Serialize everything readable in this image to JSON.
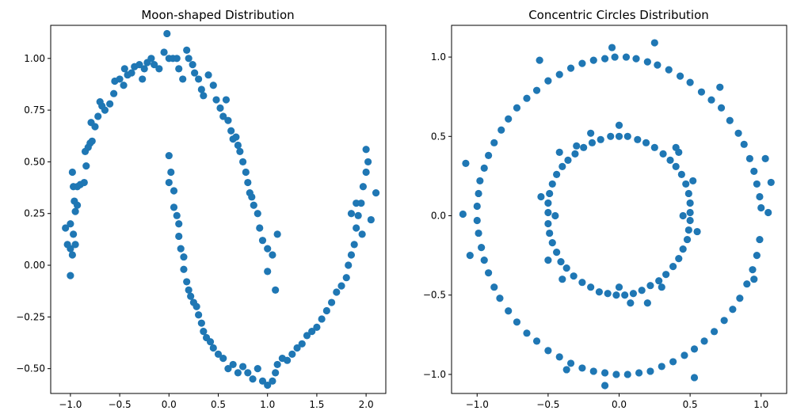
{
  "figure": {
    "background": "#ffffff",
    "marker_color": "#1f77b4"
  },
  "chart_data": [
    {
      "type": "scatter",
      "title": "Moon-shaped Distribution",
      "xlabel": "",
      "ylabel": "",
      "xlim": [
        -1.2,
        2.2
      ],
      "ylim": [
        -0.62,
        1.16
      ],
      "xticks": [
        -1.0,
        -0.5,
        0.0,
        0.5,
        1.0,
        1.5,
        2.0
      ],
      "xtick_labels": [
        "−1.0",
        "−0.5",
        "0.0",
        "0.5",
        "1.0",
        "1.5",
        "2.0"
      ],
      "yticks": [
        -0.5,
        -0.25,
        0.0,
        0.25,
        0.5,
        0.75,
        1.0
      ],
      "ytick_labels": [
        "−0.50",
        "−0.25",
        "0.00",
        "0.25",
        "0.50",
        "0.75",
        "1.00"
      ],
      "grid": false,
      "color": "#1f77b4",
      "points": [
        [
          -1.05,
          0.18
        ],
        [
          -1.03,
          0.1
        ],
        [
          -1.0,
          0.08
        ],
        [
          -0.98,
          0.05
        ],
        [
          -1.0,
          -0.05
        ],
        [
          -0.95,
          0.1
        ],
        [
          -0.97,
          0.15
        ],
        [
          -1.0,
          0.2
        ],
        [
          -0.95,
          0.26
        ],
        [
          -0.96,
          0.31
        ],
        [
          -0.93,
          0.29
        ],
        [
          -0.97,
          0.38
        ],
        [
          -0.93,
          0.38
        ],
        [
          -0.9,
          0.39
        ],
        [
          -0.98,
          0.45
        ],
        [
          -0.86,
          0.4
        ],
        [
          -0.84,
          0.48
        ],
        [
          -0.85,
          0.55
        ],
        [
          -0.82,
          0.57
        ],
        [
          -0.8,
          0.59
        ],
        [
          -0.78,
          0.6
        ],
        [
          -0.79,
          0.69
        ],
        [
          -0.75,
          0.67
        ],
        [
          -0.72,
          0.72
        ],
        [
          -0.7,
          0.79
        ],
        [
          -0.68,
          0.77
        ],
        [
          -0.65,
          0.75
        ],
        [
          -0.6,
          0.78
        ],
        [
          -0.56,
          0.83
        ],
        [
          -0.55,
          0.89
        ],
        [
          -0.5,
          0.9
        ],
        [
          -0.46,
          0.87
        ],
        [
          -0.45,
          0.95
        ],
        [
          -0.42,
          0.92
        ],
        [
          -0.38,
          0.93
        ],
        [
          -0.35,
          0.96
        ],
        [
          -0.3,
          0.97
        ],
        [
          -0.27,
          0.9
        ],
        [
          -0.25,
          0.95
        ],
        [
          -0.22,
          0.98
        ],
        [
          -0.18,
          1.0
        ],
        [
          -0.15,
          0.97
        ],
        [
          -0.1,
          0.95
        ],
        [
          -0.05,
          1.03
        ],
        [
          0.0,
          1.0
        ],
        [
          -0.02,
          1.12
        ],
        [
          0.04,
          1.0
        ],
        [
          0.08,
          1.0
        ],
        [
          0.1,
          0.95
        ],
        [
          0.14,
          0.9
        ],
        [
          0.18,
          1.04
        ],
        [
          0.2,
          1.0
        ],
        [
          0.24,
          0.97
        ],
        [
          0.26,
          0.93
        ],
        [
          0.3,
          0.9
        ],
        [
          0.33,
          0.85
        ],
        [
          0.35,
          0.82
        ],
        [
          0.4,
          0.92
        ],
        [
          0.45,
          0.87
        ],
        [
          0.48,
          0.8
        ],
        [
          0.52,
          0.76
        ],
        [
          0.55,
          0.72
        ],
        [
          0.58,
          0.8
        ],
        [
          0.6,
          0.7
        ],
        [
          0.63,
          0.65
        ],
        [
          0.65,
          0.61
        ],
        [
          0.68,
          0.62
        ],
        [
          0.7,
          0.58
        ],
        [
          0.72,
          0.55
        ],
        [
          0.75,
          0.5
        ],
        [
          0.78,
          0.45
        ],
        [
          0.8,
          0.4
        ],
        [
          0.82,
          0.35
        ],
        [
          0.84,
          0.33
        ],
        [
          0.86,
          0.29
        ],
        [
          0.9,
          0.25
        ],
        [
          0.92,
          0.18
        ],
        [
          0.95,
          0.12
        ],
        [
          1.0,
          0.08
        ],
        [
          1.05,
          0.05
        ],
        [
          1.1,
          0.15
        ],
        [
          1.08,
          -0.12
        ],
        [
          1.0,
          -0.03
        ],
        [
          0.0,
          0.53
        ],
        [
          0.02,
          0.45
        ],
        [
          0.0,
          0.4
        ],
        [
          0.05,
          0.36
        ],
        [
          0.05,
          0.28
        ],
        [
          0.08,
          0.24
        ],
        [
          0.1,
          0.2
        ],
        [
          0.1,
          0.14
        ],
        [
          0.12,
          0.08
        ],
        [
          0.15,
          0.04
        ],
        [
          0.15,
          -0.02
        ],
        [
          0.18,
          -0.08
        ],
        [
          0.2,
          -0.12
        ],
        [
          0.22,
          -0.15
        ],
        [
          0.25,
          -0.18
        ],
        [
          0.28,
          -0.2
        ],
        [
          0.3,
          -0.24
        ],
        [
          0.33,
          -0.28
        ],
        [
          0.35,
          -0.32
        ],
        [
          0.38,
          -0.35
        ],
        [
          0.42,
          -0.37
        ],
        [
          0.45,
          -0.4
        ],
        [
          0.5,
          -0.43
        ],
        [
          0.55,
          -0.45
        ],
        [
          0.6,
          -0.5
        ],
        [
          0.65,
          -0.48
        ],
        [
          0.7,
          -0.52
        ],
        [
          0.75,
          -0.49
        ],
        [
          0.8,
          -0.52
        ],
        [
          0.85,
          -0.55
        ],
        [
          0.9,
          -0.5
        ],
        [
          0.95,
          -0.56
        ],
        [
          1.0,
          -0.58
        ],
        [
          1.05,
          -0.56
        ],
        [
          1.08,
          -0.52
        ],
        [
          1.1,
          -0.48
        ],
        [
          1.15,
          -0.45
        ],
        [
          1.2,
          -0.46
        ],
        [
          1.25,
          -0.43
        ],
        [
          1.3,
          -0.4
        ],
        [
          1.35,
          -0.38
        ],
        [
          1.4,
          -0.34
        ],
        [
          1.45,
          -0.32
        ],
        [
          1.5,
          -0.3
        ],
        [
          1.55,
          -0.26
        ],
        [
          1.6,
          -0.22
        ],
        [
          1.65,
          -0.18
        ],
        [
          1.7,
          -0.13
        ],
        [
          1.75,
          -0.1
        ],
        [
          1.8,
          -0.06
        ],
        [
          1.82,
          0.0
        ],
        [
          1.85,
          0.05
        ],
        [
          1.88,
          0.1
        ],
        [
          1.9,
          0.18
        ],
        [
          1.92,
          0.24
        ],
        [
          1.95,
          0.3
        ],
        [
          1.97,
          0.38
        ],
        [
          2.0,
          0.45
        ],
        [
          2.02,
          0.5
        ],
        [
          2.0,
          0.56
        ],
        [
          2.05,
          0.22
        ],
        [
          2.1,
          0.35
        ],
        [
          1.96,
          0.15
        ],
        [
          1.9,
          0.3
        ],
        [
          1.85,
          0.25
        ]
      ]
    },
    {
      "type": "scatter",
      "title": "Concentric Circles Distribution",
      "xlabel": "",
      "ylabel": "",
      "xlim": [
        -1.18,
        1.18
      ],
      "ylim": [
        -1.12,
        1.2
      ],
      "xticks": [
        -1.0,
        -0.5,
        0.0,
        0.5,
        1.0
      ],
      "xtick_labels": [
        "−1.0",
        "−0.5",
        "0.0",
        "0.5",
        "1.0"
      ],
      "yticks": [
        -1.0,
        -0.5,
        0.0,
        0.5,
        1.0
      ],
      "ytick_labels": [
        "−1.0",
        "−0.5",
        "0.0",
        "0.5",
        "1.0"
      ],
      "grid": false,
      "color": "#1f77b4",
      "points": [
        [
          1.0,
          0.05
        ],
        [
          0.99,
          0.12
        ],
        [
          0.97,
          0.2
        ],
        [
          0.95,
          0.28
        ],
        [
          0.92,
          0.36
        ],
        [
          0.88,
          0.45
        ],
        [
          0.84,
          0.52
        ],
        [
          0.78,
          0.6
        ],
        [
          0.72,
          0.68
        ],
        [
          0.65,
          0.73
        ],
        [
          0.58,
          0.78
        ],
        [
          0.5,
          0.84
        ],
        [
          0.43,
          0.88
        ],
        [
          0.35,
          0.92
        ],
        [
          0.27,
          0.95
        ],
        [
          0.2,
          0.97
        ],
        [
          0.12,
          0.99
        ],
        [
          0.05,
          1.0
        ],
        [
          -0.03,
          1.0
        ],
        [
          -0.1,
          0.99
        ],
        [
          -0.18,
          0.98
        ],
        [
          -0.26,
          0.96
        ],
        [
          -0.34,
          0.93
        ],
        [
          -0.42,
          0.89
        ],
        [
          -0.5,
          0.85
        ],
        [
          -0.58,
          0.79
        ],
        [
          -0.65,
          0.74
        ],
        [
          -0.72,
          0.68
        ],
        [
          -0.78,
          0.61
        ],
        [
          -0.83,
          0.54
        ],
        [
          -0.88,
          0.46
        ],
        [
          -0.92,
          0.38
        ],
        [
          -0.95,
          0.3
        ],
        [
          -0.98,
          0.22
        ],
        [
          -0.99,
          0.14
        ],
        [
          -1.0,
          0.06
        ],
        [
          -1.0,
          -0.03
        ],
        [
          -0.99,
          -0.11
        ],
        [
          -0.97,
          -0.2
        ],
        [
          -0.95,
          -0.28
        ],
        [
          -0.92,
          -0.36
        ],
        [
          -0.88,
          -0.45
        ],
        [
          -0.84,
          -0.52
        ],
        [
          -0.78,
          -0.6
        ],
        [
          -0.72,
          -0.67
        ],
        [
          -0.65,
          -0.74
        ],
        [
          -0.58,
          -0.79
        ],
        [
          -0.5,
          -0.85
        ],
        [
          -0.42,
          -0.89
        ],
        [
          -0.34,
          -0.93
        ],
        [
          -0.26,
          -0.96
        ],
        [
          -0.18,
          -0.98
        ],
        [
          -0.1,
          -0.99
        ],
        [
          -0.02,
          -1.0
        ],
        [
          0.06,
          -1.0
        ],
        [
          0.14,
          -0.99
        ],
        [
          0.22,
          -0.98
        ],
        [
          0.3,
          -0.95
        ],
        [
          0.38,
          -0.92
        ],
        [
          0.46,
          -0.88
        ],
        [
          0.53,
          -0.84
        ],
        [
          0.6,
          -0.79
        ],
        [
          0.67,
          -0.73
        ],
        [
          0.74,
          -0.66
        ],
        [
          0.8,
          -0.59
        ],
        [
          0.85,
          -0.52
        ],
        [
          0.9,
          -0.43
        ],
        [
          0.94,
          -0.34
        ],
        [
          0.97,
          -0.25
        ],
        [
          0.99,
          -0.15
        ],
        [
          1.05,
          0.02
        ],
        [
          1.07,
          0.21
        ],
        [
          -1.08,
          0.33
        ],
        [
          -1.05,
          -0.25
        ],
        [
          0.25,
          1.09
        ],
        [
          -0.05,
          1.06
        ],
        [
          0.53,
          -1.02
        ],
        [
          -0.1,
          -1.07
        ],
        [
          1.03,
          0.36
        ],
        [
          -0.56,
          0.98
        ],
        [
          0.71,
          0.81
        ],
        [
          -0.37,
          -0.97
        ],
        [
          0.95,
          -0.4
        ],
        [
          -1.1,
          0.01
        ],
        [
          0.5,
          0.02
        ],
        [
          0.5,
          0.08
        ],
        [
          0.49,
          0.14
        ],
        [
          0.47,
          0.2
        ],
        [
          0.44,
          0.26
        ],
        [
          0.4,
          0.31
        ],
        [
          0.36,
          0.35
        ],
        [
          0.31,
          0.39
        ],
        [
          0.25,
          0.43
        ],
        [
          0.19,
          0.46
        ],
        [
          0.13,
          0.48
        ],
        [
          0.06,
          0.5
        ],
        [
          0.0,
          0.5
        ],
        [
          -0.06,
          0.5
        ],
        [
          -0.13,
          0.48
        ],
        [
          -0.19,
          0.46
        ],
        [
          -0.25,
          0.43
        ],
        [
          -0.31,
          0.39
        ],
        [
          -0.36,
          0.35
        ],
        [
          -0.4,
          0.31
        ],
        [
          -0.44,
          0.26
        ],
        [
          -0.47,
          0.2
        ],
        [
          -0.49,
          0.14
        ],
        [
          -0.5,
          0.08
        ],
        [
          -0.5,
          0.02
        ],
        [
          -0.5,
          -0.05
        ],
        [
          -0.49,
          -0.11
        ],
        [
          -0.47,
          -0.17
        ],
        [
          -0.44,
          -0.23
        ],
        [
          -0.41,
          -0.29
        ],
        [
          -0.37,
          -0.33
        ],
        [
          -0.32,
          -0.38
        ],
        [
          -0.26,
          -0.42
        ],
        [
          -0.2,
          -0.45
        ],
        [
          -0.14,
          -0.48
        ],
        [
          -0.08,
          -0.49
        ],
        [
          -0.02,
          -0.5
        ],
        [
          0.04,
          -0.5
        ],
        [
          0.1,
          -0.49
        ],
        [
          0.16,
          -0.47
        ],
        [
          0.22,
          -0.44
        ],
        [
          0.28,
          -0.41
        ],
        [
          0.33,
          -0.37
        ],
        [
          0.38,
          -0.32
        ],
        [
          0.42,
          -0.27
        ],
        [
          0.45,
          -0.21
        ],
        [
          0.48,
          -0.15
        ],
        [
          0.49,
          -0.09
        ],
        [
          0.5,
          -0.03
        ],
        [
          0.42,
          0.4
        ],
        [
          -0.42,
          0.4
        ],
        [
          -0.55,
          0.12
        ],
        [
          0.55,
          -0.1
        ],
        [
          0.0,
          0.57
        ],
        [
          0.08,
          -0.55
        ],
        [
          -0.3,
          0.44
        ],
        [
          0.3,
          -0.45
        ],
        [
          -0.4,
          -0.4
        ],
        [
          0.4,
          0.43
        ],
        [
          -0.5,
          -0.28
        ],
        [
          0.52,
          0.22
        ],
        [
          -0.2,
          0.52
        ],
        [
          0.2,
          -0.55
        ],
        [
          0.45,
          0.0
        ],
        [
          -0.45,
          0.0
        ],
        [
          0.0,
          -0.45
        ]
      ]
    }
  ]
}
